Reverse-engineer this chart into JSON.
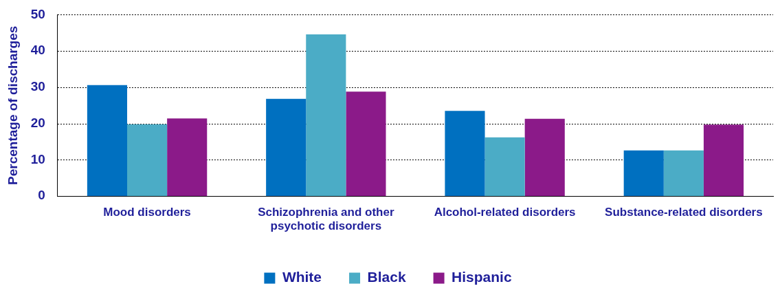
{
  "chart_data": {
    "type": "bar",
    "ylabel": "Percentage of discharges",
    "categories": [
      "Mood disorders",
      "Schizophrenia and other psychotic disorders",
      "Alcohol-related disorders",
      "Substance-related disorders"
    ],
    "series": [
      {
        "name": "White",
        "color": "#0070c0",
        "values": [
          30.6,
          26.8,
          23.5,
          12.6
        ]
      },
      {
        "name": "Black",
        "color": "#4bacc6",
        "values": [
          19.8,
          44.6,
          16.2,
          12.6
        ]
      },
      {
        "name": "Hispanic",
        "color": "#8b1a89",
        "values": [
          21.4,
          28.8,
          21.3,
          19.7
        ]
      }
    ],
    "ylim": [
      0,
      50
    ],
    "yticks": [
      0,
      10,
      20,
      30,
      40,
      50
    ],
    "grid": "y",
    "legend": "bottom"
  }
}
